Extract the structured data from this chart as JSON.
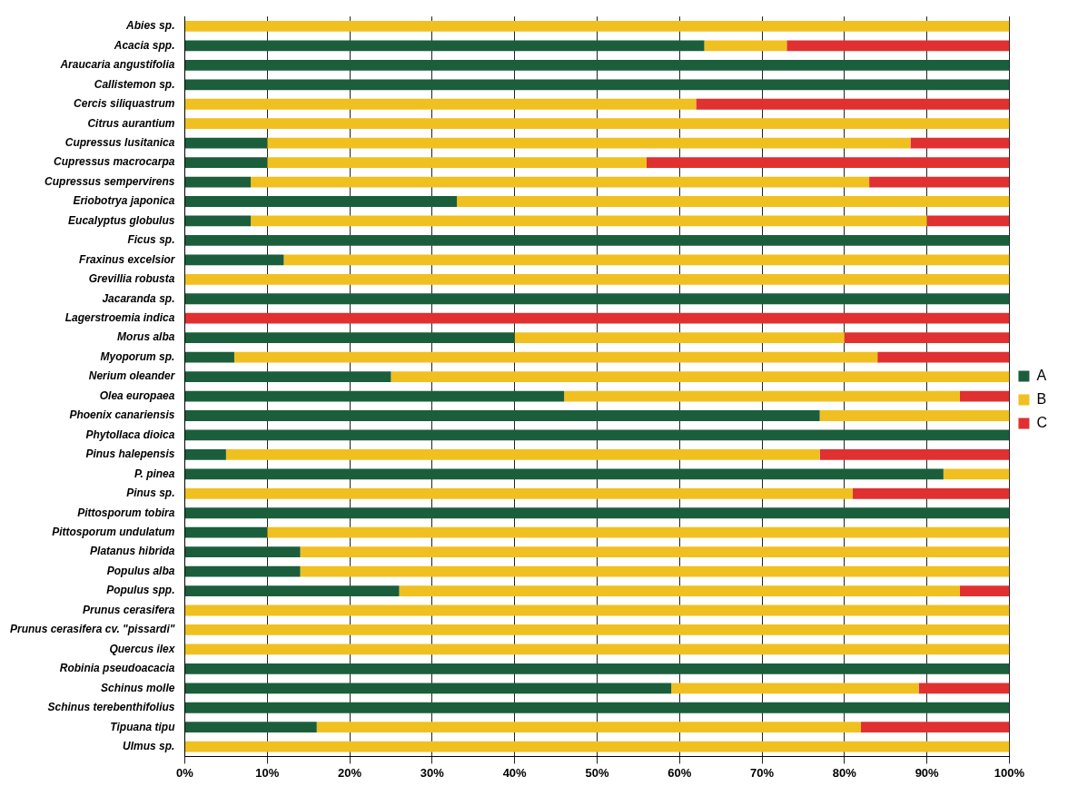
{
  "chart_data": {
    "type": "bar",
    "orientation": "horizontal",
    "stacked": true,
    "grid": "x",
    "legend": "right",
    "categories": [
      "Abies sp.",
      "Acacia spp.",
      "Araucaria angustifolia",
      "Callistemon sp.",
      "Cercis siliquastrum",
      "Citrus aurantium",
      "Cupressus lusitanica",
      "Cupressus macrocarpa",
      "Cupressus sempervirens",
      "Eriobotrya japonica",
      "Eucalyptus globulus",
      "Ficus sp.",
      "Fraxinus excelsior",
      "Grevillia robusta",
      "Jacaranda sp.",
      "Lagerstroemia indica",
      "Morus alba",
      "Myoporum sp.",
      "Nerium oleander",
      "Olea europaea",
      "Phoenix canariensis",
      "Phytollaca dioica",
      "Pinus halepensis",
      "P. pinea",
      "Pinus sp.",
      "Pittosporum tobira",
      "Pittosporum undulatum",
      "Platanus hibrida",
      "Populus alba",
      "Populus spp.",
      "Prunus cerasifera",
      "Prunus cerasifera cv. \"pissardi\"",
      "Quercus ilex",
      "Robinia pseudoacacia",
      "Schinus molle",
      "Schinus terebenthifolius",
      "Tipuana tipu",
      "Ulmus sp."
    ],
    "series": [
      {
        "name": "A",
        "color": "#1b5e3b",
        "values": [
          0,
          63,
          100,
          100,
          0,
          0,
          10,
          10,
          8,
          33,
          8,
          100,
          12,
          0,
          100,
          0,
          40,
          6,
          25,
          46,
          77,
          100,
          5,
          92,
          0,
          100,
          10,
          14,
          14,
          26,
          0,
          0,
          0,
          100,
          59,
          100,
          16,
          0
        ]
      },
      {
        "name": "B",
        "color": "#f0c020",
        "values": [
          100,
          10,
          0,
          0,
          62,
          100,
          78,
          46,
          75,
          67,
          82,
          0,
          88,
          100,
          0,
          0,
          40,
          78,
          75,
          48,
          23,
          0,
          72,
          8,
          81,
          0,
          90,
          86,
          86,
          68,
          100,
          100,
          100,
          0,
          30,
          0,
          66,
          100
        ]
      },
      {
        "name": "C",
        "color": "#e03030",
        "values": [
          0,
          27,
          0,
          0,
          38,
          0,
          12,
          44,
          17,
          0,
          10,
          0,
          0,
          0,
          0,
          100,
          20,
          16,
          0,
          6,
          0,
          0,
          23,
          0,
          19,
          0,
          0,
          0,
          0,
          6,
          0,
          0,
          0,
          0,
          11,
          0,
          18,
          0
        ]
      }
    ],
    "xlim": [
      0,
      100
    ],
    "xticks": [
      {
        "value": 0,
        "label": "0%"
      },
      {
        "value": 10,
        "label": "10%"
      },
      {
        "value": 20,
        "label": "20%"
      },
      {
        "value": 30,
        "label": "30%"
      },
      {
        "value": 40,
        "label": "40%"
      },
      {
        "value": 50,
        "label": "50%"
      },
      {
        "value": 60,
        "label": "60%"
      },
      {
        "value": 70,
        "label": "70%"
      },
      {
        "value": 80,
        "label": "80%"
      },
      {
        "value": 90,
        "label": "90%"
      },
      {
        "value": 100,
        "label": "100%"
      }
    ]
  }
}
